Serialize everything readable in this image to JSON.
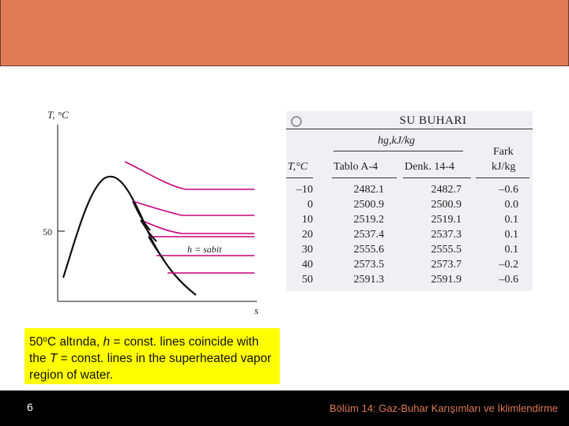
{
  "header": {
    "color": "#df7a56"
  },
  "chart_data": {
    "type": "line",
    "y_axis_label": "T, °C",
    "x_axis_label": "s",
    "y_tick_label": "50",
    "annotation": "h = sabit",
    "curves": [
      "saturation dome",
      "constant-enthalpy lines"
    ]
  },
  "table": {
    "title": "SU BUHARI",
    "group_header": "hg,kJ/kg",
    "col_headers": [
      "T,°C",
      "Tablo A-4",
      "Denk. 14-4",
      "Fark",
      "kJ/kg"
    ],
    "rows": [
      [
        "–10",
        "2482.1",
        "2482.7",
        "–0.6"
      ],
      [
        "0",
        "2500.9",
        "2500.9",
        "0.0"
      ],
      [
        "10",
        "2519.2",
        "2519.1",
        "0.1"
      ],
      [
        "20",
        "2537.4",
        "2537.3",
        "0.1"
      ],
      [
        "30",
        "2555.6",
        "2555.5",
        "0.1"
      ],
      [
        "40",
        "2573.5",
        "2573.7",
        "–0.2"
      ],
      [
        "50",
        "2591.3",
        "2591.9",
        "–0.6"
      ]
    ]
  },
  "caption": {
    "part1": "50",
    "sup": "o",
    "part2": "C altında, ",
    "h": "h",
    "part3": " = const. lines coincide with the ",
    "T": "T",
    "part4": " = const. lines in the superheated vapor region of water."
  },
  "footer": {
    "page_number": "6",
    "chapter": "Bölüm 14:  Gaz-Buhar Karışımları ve İklimlendirme"
  }
}
